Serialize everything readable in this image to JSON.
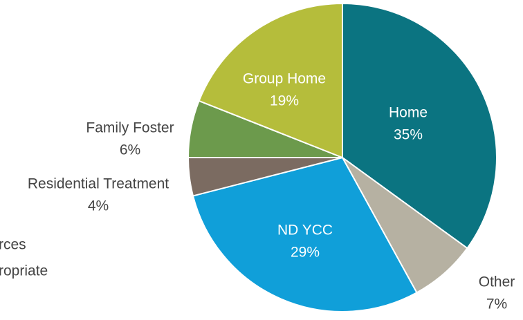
{
  "chart_data": {
    "type": "pie",
    "categories": [
      "Home",
      "Other",
      "ND YCC",
      "Residential Treatment",
      "Family Foster",
      "Group Home"
    ],
    "values": [
      35,
      7,
      29,
      4,
      6,
      19
    ],
    "value_labels": [
      "35%",
      "7%",
      "29%",
      "4%",
      "6%",
      "19%"
    ],
    "colors": [
      "#0b7481",
      "#b6b1a2",
      "#109fd9",
      "#7b6b61",
      "#6c9a4c",
      "#b5bd3b"
    ],
    "annotations": [
      "rces",
      "ropriate"
    ]
  }
}
